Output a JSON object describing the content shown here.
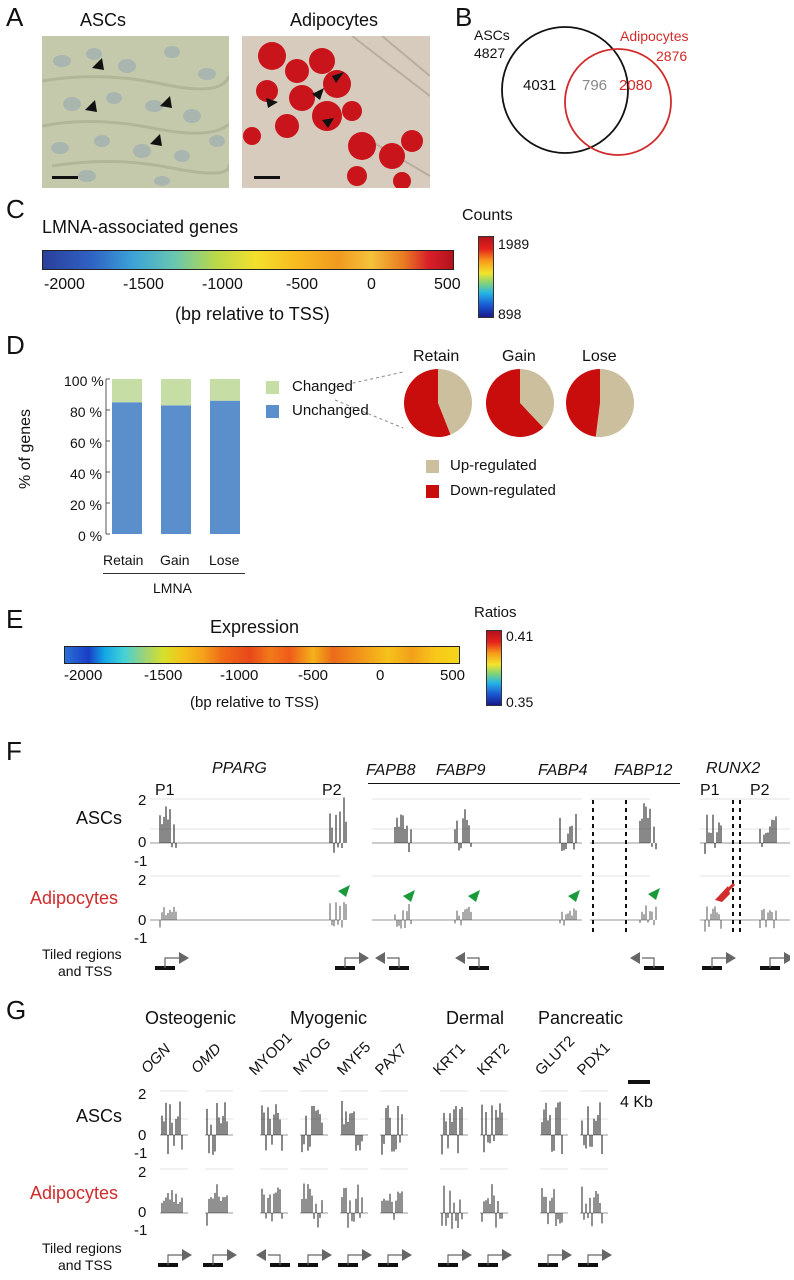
{
  "panels": {
    "A": "A",
    "B": "B",
    "C": "C",
    "D": "D",
    "E": "E",
    "F": "F",
    "G": "G"
  },
  "panelA": {
    "left_title": "ASCs",
    "right_title": "Adipocytes"
  },
  "panelB": {
    "asc_label": "ASCs",
    "asc_total": "4827",
    "adipo_label": "Adipocytes",
    "adipo_total": "2876",
    "asc_only": "4031",
    "overlap": "796",
    "adipo_only": "2080",
    "colors": {
      "asc": "#111111",
      "adipo": "#d12b2b"
    }
  },
  "panelC": {
    "title": "LMNA-associated genes",
    "ticks": [
      "-2000",
      "-1500",
      "-1000",
      "-500",
      "0",
      "500"
    ],
    "axis_label": "(bp relative to TSS)",
    "legend_title": "Counts",
    "legend_max": "1989",
    "legend_min": "898"
  },
  "panelD": {
    "ylabel": "% of genes",
    "yticks": [
      "100 %",
      "80 %",
      "60 %",
      "40 %",
      "20 %",
      "0 %"
    ],
    "legend_changed": "Changed",
    "legend_unchanged": "Unchanged",
    "group_label": "LMNA",
    "pie_legend_up": "Up-regulated",
    "pie_legend_down": "Down-regulated",
    "chart_data": [
      {
        "type": "bar",
        "categories": [
          "Retain",
          "Gain",
          "Lose"
        ],
        "series": [
          {
            "name": "Unchanged",
            "values": [
              85,
              83,
              86
            ],
            "color": "#5b8fcc"
          },
          {
            "name": "Changed",
            "values": [
              15,
              17,
              14
            ],
            "color": "#c6dea6"
          }
        ],
        "ylabel": "% of genes",
        "xlabel": "LMNA",
        "ylim": [
          0,
          100
        ]
      },
      {
        "type": "pie",
        "titles": [
          "Retain",
          "Gain",
          "Lose"
        ],
        "labels": [
          "Up-regulated",
          "Down-regulated"
        ],
        "values": [
          [
            44,
            56
          ],
          [
            38,
            62
          ],
          [
            52,
            48
          ]
        ],
        "colors": [
          "#cbbf9d",
          "#c90c0c"
        ]
      }
    ]
  },
  "panelE": {
    "title": "Expression",
    "ticks": [
      "-2000",
      "-1500",
      "-1000",
      "-500",
      "0",
      "500"
    ],
    "axis_label": "(bp relative to TSS)",
    "legend_title": "Ratios",
    "legend_max": "0.41",
    "legend_min": "0.35"
  },
  "panelF": {
    "row_asc": "ASCs",
    "row_adipo": "Adipocytes",
    "gene_pparg": "PPARG",
    "p1": "P1",
    "p2": "P2",
    "fabp_genes": [
      "FAPB8",
      "FABP9",
      "FABP4",
      "FABP12"
    ],
    "gene_runx2": "RUNX2",
    "runx_p1": "P1",
    "runx_p2": "P2",
    "yticks": [
      "2",
      "0",
      "-1"
    ],
    "tiled_line1": "Tiled regions",
    "tiled_line2": "and TSS"
  },
  "panelG": {
    "categories": [
      "Osteogenic",
      "Myogenic",
      "Dermal",
      "Pancreatic"
    ],
    "genes_italic": [
      "OGN",
      "OMD"
    ],
    "genes_myo": [
      "MYOD1",
      "MYOG",
      "MYF5",
      "PAX7"
    ],
    "genes_derm": [
      "KRT1",
      "KRT2"
    ],
    "genes_panc": [
      "GLUT2",
      "PDX1"
    ],
    "scale": "4 Kb",
    "row_asc": "ASCs",
    "row_adipo": "Adipocytes",
    "yticks": [
      "2",
      "0",
      "-1"
    ],
    "tiled_line1": "Tiled regions",
    "tiled_line2": "and TSS"
  }
}
